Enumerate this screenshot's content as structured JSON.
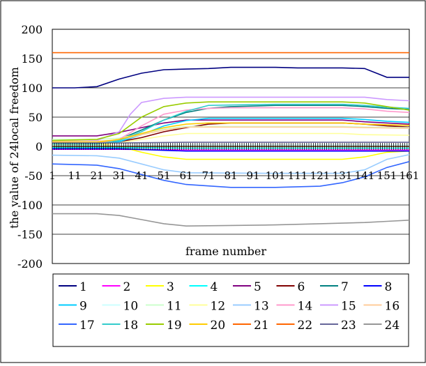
{
  "chart_data": {
    "type": "line",
    "title": "",
    "xlabel": "frame number",
    "ylabel": "the value of 24local freedom",
    "x_ticks": [
      "1",
      "11",
      "21",
      "31",
      "41",
      "51",
      "61",
      "71",
      "81",
      "91",
      "101",
      "111",
      "121",
      "131",
      "141",
      "151",
      "161"
    ],
    "y_ticks": [
      "200",
      "150",
      "100",
      "50",
      "0",
      "-50",
      "-100",
      "-150",
      "-200"
    ],
    "xlim": [
      1,
      161
    ],
    "ylim": [
      -200,
      200
    ],
    "grid": "horizontal",
    "legend": "bottom",
    "series": [
      {
        "name": "1",
        "color": "#000080",
        "points": [
          [
            1,
            100
          ],
          [
            11,
            100
          ],
          [
            21,
            102
          ],
          [
            31,
            115
          ],
          [
            41,
            125
          ],
          [
            51,
            131
          ],
          [
            61,
            132
          ],
          [
            71,
            133
          ],
          [
            81,
            135
          ],
          [
            91,
            135
          ],
          [
            101,
            135
          ],
          [
            111,
            134
          ],
          [
            121,
            134
          ],
          [
            131,
            134
          ],
          [
            141,
            133
          ],
          [
            151,
            118
          ],
          [
            161,
            118
          ]
        ]
      },
      {
        "name": "2",
        "color": "#ff00ff",
        "points": [
          [
            1,
            -5
          ],
          [
            31,
            -5
          ],
          [
            61,
            -6
          ],
          [
            101,
            -6
          ],
          [
            131,
            -6
          ],
          [
            161,
            -6
          ]
        ]
      },
      {
        "name": "3",
        "color": "#ffff00",
        "points": [
          [
            1,
            5
          ],
          [
            21,
            4
          ],
          [
            31,
            0
          ],
          [
            41,
            -10
          ],
          [
            51,
            -18
          ],
          [
            61,
            -22
          ],
          [
            101,
            -22
          ],
          [
            131,
            -22
          ],
          [
            141,
            -18
          ],
          [
            151,
            -10
          ],
          [
            161,
            -8
          ]
        ]
      },
      {
        "name": "4",
        "color": "#00ffff",
        "points": [
          [
            1,
            -2
          ],
          [
            31,
            -2
          ],
          [
            61,
            -3
          ],
          [
            101,
            -3
          ],
          [
            131,
            -3
          ],
          [
            161,
            -3
          ]
        ]
      },
      {
        "name": "5",
        "color": "#800080",
        "points": [
          [
            1,
            18
          ],
          [
            21,
            18
          ],
          [
            31,
            24
          ],
          [
            41,
            32
          ],
          [
            51,
            40
          ],
          [
            61,
            45
          ],
          [
            101,
            45
          ],
          [
            131,
            45
          ],
          [
            141,
            42
          ],
          [
            151,
            40
          ],
          [
            161,
            38
          ]
        ]
      },
      {
        "name": "6",
        "color": "#800000",
        "points": [
          [
            1,
            4
          ],
          [
            21,
            4
          ],
          [
            31,
            8
          ],
          [
            41,
            15
          ],
          [
            51,
            25
          ],
          [
            61,
            32
          ],
          [
            71,
            38
          ],
          [
            81,
            40
          ],
          [
            101,
            40
          ],
          [
            131,
            40
          ],
          [
            141,
            38
          ],
          [
            151,
            35
          ],
          [
            161,
            33
          ]
        ]
      },
      {
        "name": "7",
        "color": "#008080",
        "points": [
          [
            1,
            6
          ],
          [
            21,
            6
          ],
          [
            31,
            12
          ],
          [
            41,
            28
          ],
          [
            51,
            45
          ],
          [
            61,
            58
          ],
          [
            71,
            65
          ],
          [
            81,
            68
          ],
          [
            101,
            70
          ],
          [
            121,
            70
          ],
          [
            131,
            70
          ],
          [
            141,
            68
          ],
          [
            151,
            65
          ],
          [
            161,
            63
          ]
        ]
      },
      {
        "name": "8",
        "color": "#0000ff",
        "points": [
          [
            1,
            -4
          ],
          [
            31,
            -4
          ],
          [
            61,
            -8
          ],
          [
            101,
            -8
          ],
          [
            131,
            -8
          ],
          [
            161,
            -8
          ]
        ]
      },
      {
        "name": "9",
        "color": "#00ccff",
        "points": [
          [
            1,
            2
          ],
          [
            21,
            2
          ],
          [
            31,
            8
          ],
          [
            41,
            20
          ],
          [
            51,
            35
          ],
          [
            61,
            44
          ],
          [
            71,
            48
          ],
          [
            101,
            48
          ],
          [
            131,
            48
          ],
          [
            141,
            46
          ],
          [
            151,
            43
          ],
          [
            161,
            41
          ]
        ]
      },
      {
        "name": "10",
        "color": "#ccffff",
        "points": [
          [
            1,
            1
          ],
          [
            31,
            1
          ],
          [
            61,
            2
          ],
          [
            101,
            2
          ],
          [
            131,
            2
          ],
          [
            161,
            2
          ]
        ]
      },
      {
        "name": "11",
        "color": "#ccffcc",
        "points": [
          [
            1,
            12
          ],
          [
            21,
            12
          ],
          [
            31,
            14
          ],
          [
            41,
            22
          ],
          [
            51,
            30
          ],
          [
            61,
            34
          ],
          [
            101,
            34
          ],
          [
            131,
            34
          ],
          [
            141,
            33
          ],
          [
            161,
            32
          ]
        ]
      },
      {
        "name": "12",
        "color": "#ffff99",
        "points": [
          [
            1,
            3
          ],
          [
            21,
            3
          ],
          [
            31,
            6
          ],
          [
            41,
            12
          ],
          [
            51,
            18
          ],
          [
            61,
            22
          ],
          [
            101,
            22
          ],
          [
            131,
            22
          ],
          [
            141,
            20
          ],
          [
            161,
            19
          ]
        ]
      },
      {
        "name": "13",
        "color": "#99ccff",
        "points": [
          [
            1,
            -15
          ],
          [
            21,
            -16
          ],
          [
            31,
            -20
          ],
          [
            41,
            -30
          ],
          [
            51,
            -40
          ],
          [
            61,
            -45
          ],
          [
            101,
            -46
          ],
          [
            131,
            -46
          ],
          [
            141,
            -40
          ],
          [
            151,
            -22
          ],
          [
            161,
            -14
          ]
        ]
      },
      {
        "name": "14",
        "color": "#ff99cc",
        "points": [
          [
            1,
            5
          ],
          [
            21,
            5
          ],
          [
            31,
            12
          ],
          [
            41,
            35
          ],
          [
            51,
            55
          ],
          [
            61,
            62
          ],
          [
            71,
            65
          ],
          [
            81,
            66
          ],
          [
            101,
            66
          ],
          [
            121,
            66
          ],
          [
            131,
            66
          ],
          [
            141,
            64
          ],
          [
            151,
            60
          ],
          [
            161,
            58
          ]
        ]
      },
      {
        "name": "15",
        "color": "#cc99ff",
        "points": [
          [
            1,
            8
          ],
          [
            21,
            10
          ],
          [
            31,
            25
          ],
          [
            36,
            55
          ],
          [
            41,
            75
          ],
          [
            51,
            82
          ],
          [
            61,
            84
          ],
          [
            101,
            84
          ],
          [
            131,
            84
          ],
          [
            141,
            84
          ],
          [
            151,
            80
          ],
          [
            161,
            78
          ]
        ]
      },
      {
        "name": "16",
        "color": "#ffcc99",
        "points": [
          [
            1,
            9
          ],
          [
            21,
            9
          ],
          [
            31,
            11
          ],
          [
            41,
            20
          ],
          [
            51,
            28
          ],
          [
            61,
            33
          ],
          [
            101,
            33
          ],
          [
            131,
            33
          ],
          [
            141,
            32
          ],
          [
            161,
            31
          ]
        ]
      },
      {
        "name": "17",
        "color": "#3366ff",
        "points": [
          [
            1,
            -30
          ],
          [
            21,
            -32
          ],
          [
            31,
            -38
          ],
          [
            41,
            -48
          ],
          [
            51,
            -58
          ],
          [
            61,
            -65
          ],
          [
            81,
            -70
          ],
          [
            101,
            -70
          ],
          [
            121,
            -68
          ],
          [
            131,
            -62
          ],
          [
            141,
            -52
          ],
          [
            151,
            -36
          ],
          [
            161,
            -26
          ]
        ]
      },
      {
        "name": "18",
        "color": "#33cccc",
        "points": [
          [
            1,
            4
          ],
          [
            21,
            4
          ],
          [
            31,
            10
          ],
          [
            41,
            25
          ],
          [
            51,
            45
          ],
          [
            61,
            60
          ],
          [
            71,
            70
          ],
          [
            101,
            72
          ],
          [
            121,
            72
          ],
          [
            131,
            72
          ],
          [
            141,
            70
          ],
          [
            151,
            67
          ],
          [
            161,
            65
          ]
        ]
      },
      {
        "name": "19",
        "color": "#99cc00",
        "points": [
          [
            1,
            10
          ],
          [
            21,
            12
          ],
          [
            31,
            22
          ],
          [
            41,
            50
          ],
          [
            51,
            68
          ],
          [
            61,
            74
          ],
          [
            71,
            76
          ],
          [
            101,
            76
          ],
          [
            131,
            76
          ],
          [
            141,
            74
          ],
          [
            151,
            68
          ],
          [
            161,
            62
          ]
        ]
      },
      {
        "name": "20",
        "color": "#ffcc00",
        "points": [
          [
            1,
            7
          ],
          [
            21,
            7
          ],
          [
            31,
            12
          ],
          [
            41,
            22
          ],
          [
            51,
            32
          ],
          [
            61,
            38
          ],
          [
            71,
            40
          ],
          [
            101,
            40
          ],
          [
            131,
            40
          ],
          [
            141,
            38
          ],
          [
            161,
            36
          ]
        ]
      },
      {
        "name": "21",
        "color": "#ff6600",
        "points": [
          [
            1,
            160
          ],
          [
            41,
            160
          ],
          [
            81,
            160
          ],
          [
            121,
            160
          ],
          [
            161,
            160
          ]
        ]
      },
      {
        "name": "22",
        "color": "#ff6600",
        "points": [
          [
            1,
            0
          ],
          [
            161,
            0
          ]
        ]
      },
      {
        "name": "23",
        "color": "#666699",
        "points": [
          [
            1,
            6
          ],
          [
            31,
            6
          ],
          [
            61,
            7
          ],
          [
            101,
            7
          ],
          [
            131,
            7
          ],
          [
            161,
            7
          ]
        ]
      },
      {
        "name": "24",
        "color": "#969696",
        "points": [
          [
            1,
            -115
          ],
          [
            21,
            -115
          ],
          [
            31,
            -118
          ],
          [
            41,
            -125
          ],
          [
            51,
            -132
          ],
          [
            61,
            -136
          ],
          [
            81,
            -135
          ],
          [
            101,
            -134
          ],
          [
            121,
            -132
          ],
          [
            141,
            -130
          ],
          [
            151,
            -128
          ],
          [
            161,
            -126
          ]
        ]
      }
    ]
  }
}
